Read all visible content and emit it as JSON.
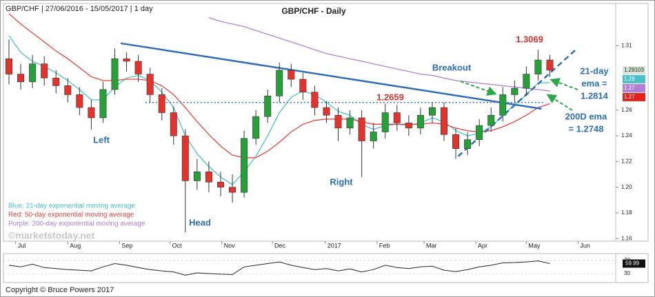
{
  "header": "GBP/CHF | 27/06/2016 - 15/05/2017 | 1 day",
  "copyright": "Copyright © Bruce Powers 2017",
  "watermark": "©marketstoday.net",
  "chart_data": [
    {
      "type": "candlestick",
      "title": "GBP/CHF - Daily",
      "up_color": "#27a03a",
      "down_color": "#e2332c",
      "open": [
        1.3,
        1.288,
        1.282,
        1.296,
        1.285,
        1.279,
        1.272,
        1.262,
        1.254,
        1.276,
        1.3,
        1.298,
        1.288,
        1.272,
        1.258,
        1.24,
        1.205,
        1.212,
        1.204,
        1.2,
        1.196,
        1.238,
        1.255,
        1.271,
        1.291,
        1.284,
        1.274,
        1.262,
        1.256,
        1.246,
        1.254,
        1.236,
        1.243,
        1.258,
        1.25,
        1.246,
        1.256,
        1.262,
        1.241,
        1.23,
        1.237,
        1.248,
        1.256,
        1.272,
        1.277,
        1.288,
        1.299
      ],
      "high": [
        1.315,
        1.296,
        1.303,
        1.302,
        1.291,
        1.285,
        1.278,
        1.268,
        1.282,
        1.308,
        1.305,
        1.303,
        1.293,
        1.277,
        1.263,
        1.245,
        1.222,
        1.22,
        1.212,
        1.21,
        1.244,
        1.26,
        1.276,
        1.297,
        1.296,
        1.289,
        1.279,
        1.267,
        1.262,
        1.26,
        1.26,
        1.25,
        1.265,
        1.264,
        1.256,
        1.262,
        1.266,
        1.266,
        1.246,
        1.243,
        1.253,
        1.262,
        1.278,
        1.283,
        1.294,
        1.3069,
        1.303
      ],
      "low": [
        1.28,
        1.276,
        1.277,
        1.279,
        1.273,
        1.266,
        1.256,
        1.245,
        1.25,
        1.272,
        1.29,
        1.282,
        1.266,
        1.252,
        1.233,
        1.165,
        1.198,
        1.196,
        1.193,
        1.188,
        1.192,
        1.233,
        1.25,
        1.266,
        1.278,
        1.268,
        1.256,
        1.25,
        1.236,
        1.241,
        1.208,
        1.23,
        1.238,
        1.244,
        1.24,
        1.241,
        1.25,
        1.236,
        1.222,
        1.225,
        1.232,
        1.243,
        1.251,
        1.266,
        1.271,
        1.283,
        1.286
      ],
      "close": [
        1.288,
        1.282,
        1.296,
        1.285,
        1.279,
        1.272,
        1.262,
        1.254,
        1.276,
        1.3,
        1.298,
        1.288,
        1.272,
        1.258,
        1.24,
        1.205,
        1.212,
        1.204,
        1.2,
        1.196,
        1.238,
        1.255,
        1.271,
        1.291,
        1.284,
        1.274,
        1.262,
        1.256,
        1.246,
        1.254,
        1.236,
        1.243,
        1.258,
        1.25,
        1.246,
        1.256,
        1.262,
        1.241,
        1.23,
        1.237,
        1.248,
        1.256,
        1.272,
        1.277,
        1.288,
        1.299,
        1.291
      ],
      "series": [
        {
          "name": "Blue: 21-day exponential moving average",
          "color": "#4cc0c8",
          "values": [
            1.318,
            1.305,
            1.298,
            1.294,
            1.289,
            1.283,
            1.276,
            1.268,
            1.268,
            1.278,
            1.285,
            1.287,
            1.283,
            1.274,
            1.262,
            1.24,
            1.226,
            1.216,
            1.208,
            1.202,
            1.212,
            1.224,
            1.24,
            1.258,
            1.27,
            1.275,
            1.272,
            1.266,
            1.259,
            1.256,
            1.249,
            1.245,
            1.248,
            1.249,
            1.248,
            1.25,
            1.254,
            1.251,
            1.244,
            1.24,
            1.242,
            1.247,
            1.256,
            1.264,
            1.272,
            1.281,
            1.2814
          ]
        },
        {
          "name": "Red: 50-day exponential moving average",
          "color": "#e5453e",
          "values": [
            1.335,
            1.327,
            1.32,
            1.313,
            1.306,
            1.3,
            1.293,
            1.286,
            1.283,
            1.283,
            1.284,
            1.284,
            1.283,
            1.279,
            1.272,
            1.262,
            1.251,
            1.241,
            1.232,
            1.225,
            1.223,
            1.223,
            1.228,
            1.235,
            1.243,
            1.249,
            1.252,
            1.253,
            1.253,
            1.253,
            1.251,
            1.249,
            1.249,
            1.249,
            1.249,
            1.249,
            1.25,
            1.249,
            1.246,
            1.244,
            1.243,
            1.244,
            1.247,
            1.251,
            1.256,
            1.262,
            1.265
          ]
        },
        {
          "name": "Purple: 200-day exponential moving average",
          "color": "#b27fd6",
          "values": [
            null,
            null,
            null,
            null,
            null,
            null,
            null,
            null,
            null,
            null,
            null,
            null,
            null,
            null,
            null,
            null,
            null,
            1.332,
            1.329,
            1.327,
            1.325,
            1.322,
            1.319,
            1.316,
            1.313,
            1.31,
            1.307,
            1.304,
            1.302,
            1.3,
            1.298,
            1.296,
            1.294,
            1.292,
            1.29,
            1.288,
            1.287,
            1.285,
            1.283,
            1.282,
            1.281,
            1.28,
            1.279,
            1.278,
            1.277,
            1.276,
            1.2748
          ]
        }
      ],
      "trendlines": [
        {
          "x": [
            9.5,
            45.3
          ],
          "y": [
            1.312,
            1.261
          ],
          "color": "#2f6db5",
          "style": "solid"
        },
        {
          "x": [
            11.6,
            45.6
          ],
          "y": [
            1.2659,
            1.2659
          ],
          "color": "#2f6db5",
          "style": "dotted"
        },
        {
          "x": [
            38.2,
            48.2
          ],
          "y": [
            1.224,
            1.307
          ],
          "color": "#2f6db5",
          "style": "dashed"
        }
      ],
      "annotations": [
        {
          "lines": [
            "1.3069"
          ],
          "color": "#d9312b"
        },
        {
          "lines": [
            "1.2659"
          ],
          "color": "#d9312b"
        },
        {
          "lines": [
            "Breakout"
          ],
          "color": "#2e6eb5"
        },
        {
          "lines": [
            "21-day",
            "ema =",
            "1.2814"
          ],
          "color": "#2e6eb5"
        },
        {
          "lines": [
            "200D ema",
            "= 1.2748"
          ],
          "color": "#2e6eb5"
        },
        {
          "lines": [
            "Left"
          ],
          "color": "#2e6eb5"
        },
        {
          "lines": [
            "Head"
          ],
          "color": "#2e6eb5"
        },
        {
          "lines": [
            "Right"
          ],
          "color": "#2e6eb5"
        }
      ],
      "price_badges": [
        {
          "value": 1.29103,
          "color": "#d7e6d3"
        },
        {
          "value": 1.28,
          "color": "#4cc0c8"
        },
        {
          "value": 1.27,
          "color": "#b27fd6"
        },
        {
          "value": 1.27,
          "color": "#e5231d"
        }
      ],
      "xlim": [
        -0.47,
        51.6
      ],
      "ylim": [
        1.158,
        1.343
      ],
      "xticks": [
        {
          "value": 0.57,
          "label": "Jul"
        },
        {
          "value": 5.0,
          "label": "Aug"
        },
        {
          "value": 9.4,
          "label": "Sep"
        },
        {
          "value": 13.7,
          "label": "Oct"
        },
        {
          "value": 18.1,
          "label": "Nov"
        },
        {
          "value": 22.4,
          "label": "Dec"
        },
        26.9,
        {
          "value": 31.3,
          "label": "Feb"
        },
        {
          "value": 35.3,
          "label": "Mar"
        },
        {
          "value": 39.7,
          "label": "Apr"
        },
        {
          "value": 44.0,
          "label": "May"
        },
        {
          "value": 48.4,
          "label": "Jun"
        }
      ],
      "xtick_year": "2017",
      "yticks": [
        1.16,
        1.18,
        {
          "value": 1.2,
          "label": "1.20"
        },
        1.22,
        1.24,
        1.26,
        1.31
      ]
    },
    {
      "type": "line",
      "color": "#222222",
      "values": [
        55,
        50,
        58,
        48,
        45,
        42,
        40,
        38,
        50,
        60,
        55,
        48,
        42,
        38,
        35,
        25,
        32,
        30,
        28,
        27,
        50,
        55,
        60,
        65,
        55,
        48,
        42,
        45,
        38,
        44,
        35,
        42,
        55,
        48,
        45,
        50,
        52,
        40,
        36,
        42,
        50,
        55,
        62,
        63,
        65,
        68,
        59.99
      ],
      "value_badge": 59.99,
      "xlim": [
        -0.47,
        51.6
      ],
      "ylim": [
        3,
        90
      ],
      "yticks": [
        30,
        70
      ]
    }
  ]
}
